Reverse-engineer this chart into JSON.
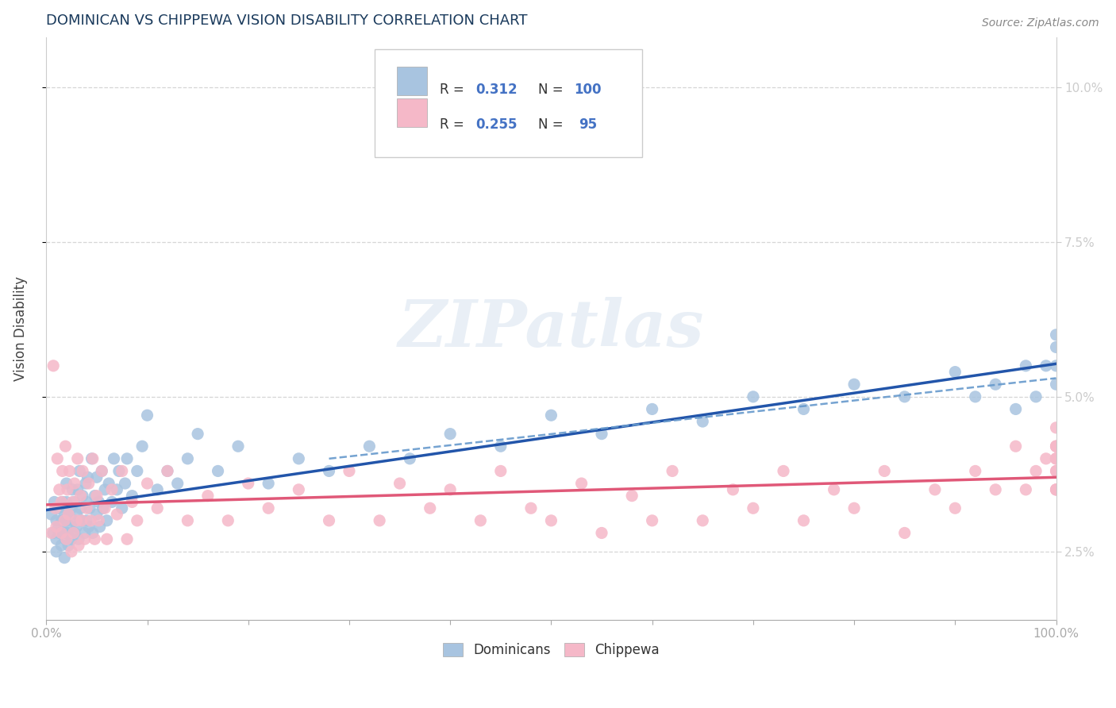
{
  "title": "DOMINICAN VS CHIPPEWA VISION DISABILITY CORRELATION CHART",
  "source": "Source: ZipAtlas.com",
  "ylabel": "Vision Disability",
  "yticks": [
    0.025,
    0.05,
    0.075,
    0.1
  ],
  "ytick_labels": [
    "2.5%",
    "5.0%",
    "7.5%",
    "10.0%"
  ],
  "xlim": [
    0.0,
    1.0
  ],
  "ylim": [
    0.014,
    0.108
  ],
  "dominican_color": "#a8c4e0",
  "chippewa_color": "#f5b8c8",
  "dominican_line_color": "#2255aa",
  "chippewa_line_color": "#e05878",
  "dashed_line_color": "#6699cc",
  "watermark_text": "ZIPatlas",
  "dominican_x": [
    0.005,
    0.007,
    0.008,
    0.01,
    0.01,
    0.01,
    0.012,
    0.012,
    0.013,
    0.015,
    0.015,
    0.016,
    0.017,
    0.018,
    0.018,
    0.019,
    0.02,
    0.02,
    0.02,
    0.021,
    0.022,
    0.022,
    0.023,
    0.025,
    0.025,
    0.026,
    0.027,
    0.028,
    0.028,
    0.03,
    0.03,
    0.031,
    0.032,
    0.033,
    0.034,
    0.035,
    0.036,
    0.038,
    0.039,
    0.04,
    0.04,
    0.041,
    0.042,
    0.043,
    0.045,
    0.046,
    0.048,
    0.05,
    0.05,
    0.052,
    0.053,
    0.055,
    0.056,
    0.058,
    0.06,
    0.062,
    0.065,
    0.067,
    0.07,
    0.072,
    0.075,
    0.078,
    0.08,
    0.085,
    0.09,
    0.095,
    0.1,
    0.11,
    0.12,
    0.13,
    0.14,
    0.15,
    0.17,
    0.19,
    0.22,
    0.25,
    0.28,
    0.32,
    0.36,
    0.4,
    0.45,
    0.5,
    0.55,
    0.6,
    0.65,
    0.7,
    0.75,
    0.8,
    0.85,
    0.9,
    0.92,
    0.94,
    0.96,
    0.97,
    0.98,
    0.99,
    1.0,
    1.0,
    1.0,
    1.0
  ],
  "dominican_y": [
    0.031,
    0.028,
    0.033,
    0.03,
    0.027,
    0.025,
    0.029,
    0.032,
    0.028,
    0.026,
    0.03,
    0.033,
    0.028,
    0.031,
    0.024,
    0.027,
    0.03,
    0.033,
    0.036,
    0.028,
    0.026,
    0.031,
    0.029,
    0.032,
    0.027,
    0.035,
    0.03,
    0.028,
    0.033,
    0.029,
    0.031,
    0.035,
    0.027,
    0.038,
    0.032,
    0.03,
    0.034,
    0.028,
    0.036,
    0.033,
    0.03,
    0.037,
    0.029,
    0.032,
    0.04,
    0.028,
    0.034,
    0.031,
    0.037,
    0.033,
    0.029,
    0.038,
    0.032,
    0.035,
    0.03,
    0.036,
    0.033,
    0.04,
    0.035,
    0.038,
    0.032,
    0.036,
    0.04,
    0.034,
    0.038,
    0.042,
    0.047,
    0.035,
    0.038,
    0.036,
    0.04,
    0.044,
    0.038,
    0.042,
    0.036,
    0.04,
    0.038,
    0.042,
    0.04,
    0.044,
    0.042,
    0.047,
    0.044,
    0.048,
    0.046,
    0.05,
    0.048,
    0.052,
    0.05,
    0.054,
    0.05,
    0.052,
    0.048,
    0.055,
    0.05,
    0.055,
    0.052,
    0.058,
    0.055,
    0.06
  ],
  "chippewa_x": [
    0.005,
    0.007,
    0.009,
    0.01,
    0.011,
    0.013,
    0.015,
    0.015,
    0.016,
    0.018,
    0.019,
    0.02,
    0.021,
    0.022,
    0.023,
    0.025,
    0.026,
    0.027,
    0.028,
    0.03,
    0.031,
    0.032,
    0.034,
    0.035,
    0.036,
    0.038,
    0.04,
    0.042,
    0.044,
    0.046,
    0.048,
    0.05,
    0.052,
    0.055,
    0.058,
    0.06,
    0.065,
    0.07,
    0.075,
    0.08,
    0.085,
    0.09,
    0.1,
    0.11,
    0.12,
    0.14,
    0.16,
    0.18,
    0.2,
    0.22,
    0.25,
    0.28,
    0.3,
    0.33,
    0.35,
    0.38,
    0.4,
    0.43,
    0.45,
    0.48,
    0.5,
    0.53,
    0.55,
    0.58,
    0.6,
    0.62,
    0.65,
    0.68,
    0.7,
    0.73,
    0.75,
    0.78,
    0.8,
    0.83,
    0.85,
    0.88,
    0.9,
    0.92,
    0.94,
    0.96,
    0.97,
    0.98,
    0.99,
    1.0,
    1.0,
    1.0,
    1.0,
    1.0,
    1.0,
    1.0,
    1.0,
    1.0,
    1.0,
    1.0,
    1.0
  ],
  "chippewa_y": [
    0.028,
    0.055,
    0.032,
    0.029,
    0.04,
    0.035,
    0.033,
    0.028,
    0.038,
    0.03,
    0.042,
    0.027,
    0.035,
    0.031,
    0.038,
    0.025,
    0.033,
    0.028,
    0.036,
    0.03,
    0.04,
    0.026,
    0.034,
    0.03,
    0.038,
    0.027,
    0.032,
    0.036,
    0.03,
    0.04,
    0.027,
    0.034,
    0.03,
    0.038,
    0.032,
    0.027,
    0.035,
    0.031,
    0.038,
    0.027,
    0.033,
    0.03,
    0.036,
    0.032,
    0.038,
    0.03,
    0.034,
    0.03,
    0.036,
    0.032,
    0.035,
    0.03,
    0.038,
    0.03,
    0.036,
    0.032,
    0.035,
    0.03,
    0.038,
    0.032,
    0.03,
    0.036,
    0.028,
    0.034,
    0.03,
    0.038,
    0.03,
    0.035,
    0.032,
    0.038,
    0.03,
    0.035,
    0.032,
    0.038,
    0.028,
    0.035,
    0.032,
    0.038,
    0.035,
    0.042,
    0.035,
    0.038,
    0.04,
    0.035,
    0.038,
    0.042,
    0.035,
    0.04,
    0.038,
    0.045,
    0.04,
    0.042,
    0.035,
    0.04,
    0.042
  ]
}
